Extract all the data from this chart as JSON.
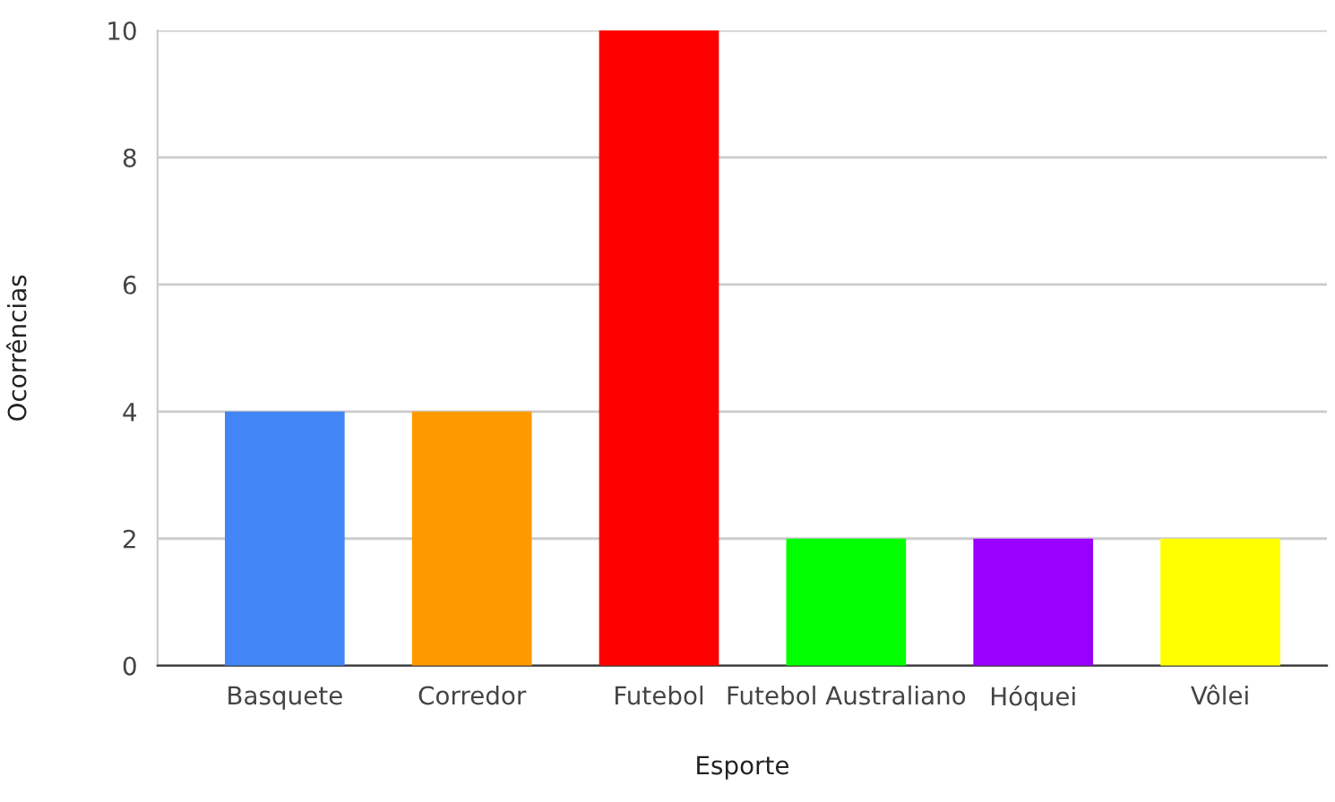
{
  "chart_data": {
    "type": "bar",
    "xlabel": "Esporte",
    "ylabel": "Ocorrências",
    "categories": [
      "Basquete",
      "Corredor",
      "Futebol",
      "Futebol Australiano",
      "Hóquei",
      "Vôlei"
    ],
    "values": [
      4,
      4,
      10,
      2,
      2,
      2
    ],
    "colors": [
      "#4285f4",
      "#ff9900",
      "#ff0000",
      "#00ff00",
      "#9900ff",
      "#ffff00"
    ],
    "ylim": [
      0,
      10
    ],
    "yticks": [
      0,
      2,
      4,
      6,
      8,
      10
    ],
    "grid": "y",
    "legend": false
  }
}
